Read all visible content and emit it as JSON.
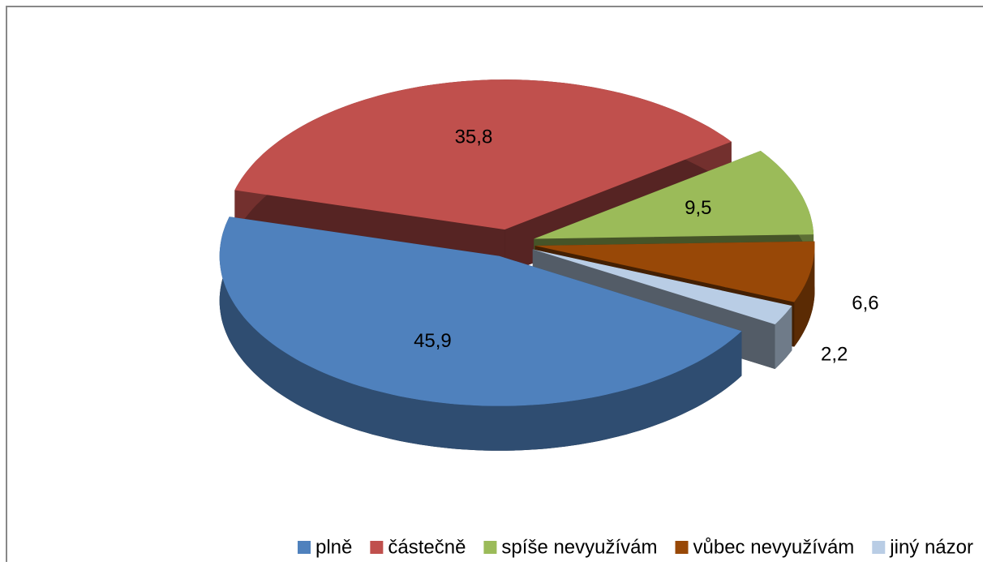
{
  "chart_data": {
    "type": "pie3d",
    "categories": [
      "plně",
      "částečně",
      "spíše nevyužívám",
      "vůbec nevyužívám",
      "jiný názor"
    ],
    "values": [
      45.9,
      35.8,
      9.5,
      6.6,
      2.2
    ],
    "value_labels": [
      "45,9",
      "35,8",
      "9,5",
      "6,6",
      "2,2"
    ],
    "colors": [
      "#4f81bd",
      "#c0504d",
      "#9bbb59",
      "#984807",
      "#b9cde5"
    ],
    "legend": "bottom"
  }
}
